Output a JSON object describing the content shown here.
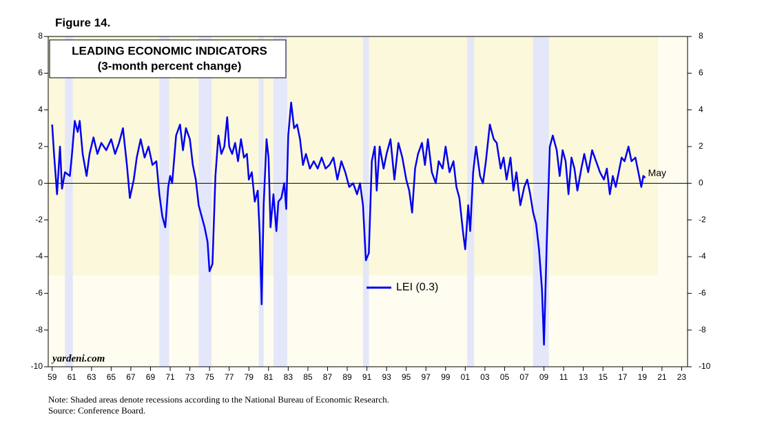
{
  "chart_data": {
    "type": "line",
    "figure_label": "Figure 14.",
    "title": "LEADING ECONOMIC INDICATORS",
    "subtitle": "(3-month percent change)",
    "x": [
      1959.0,
      1959.2,
      1959.5,
      1959.8,
      1960.0,
      1960.3,
      1960.8,
      1961.0,
      1961.3,
      1961.6,
      1961.8,
      1962.1,
      1962.5,
      1962.8,
      1963.2,
      1963.6,
      1964.0,
      1964.5,
      1965.0,
      1965.4,
      1965.8,
      1966.2,
      1966.6,
      1966.9,
      1967.3,
      1967.6,
      1968.0,
      1968.4,
      1968.8,
      1969.2,
      1969.6,
      1969.9,
      1970.2,
      1970.5,
      1970.8,
      1971.0,
      1971.2,
      1971.6,
      1972.0,
      1972.3,
      1972.6,
      1973.0,
      1973.3,
      1973.6,
      1973.9,
      1974.2,
      1974.5,
      1974.8,
      1975.0,
      1975.3,
      1975.6,
      1975.9,
      1976.2,
      1976.5,
      1976.8,
      1977.0,
      1977.3,
      1977.6,
      1977.9,
      1978.2,
      1978.5,
      1978.8,
      1979.0,
      1979.3,
      1979.6,
      1979.9,
      1980.1,
      1980.3,
      1980.5,
      1980.8,
      1981.0,
      1981.2,
      1981.5,
      1981.8,
      1982.0,
      1982.3,
      1982.6,
      1982.8,
      1983.0,
      1983.3,
      1983.6,
      1983.9,
      1984.2,
      1984.5,
      1984.8,
      1985.2,
      1985.6,
      1986.0,
      1986.4,
      1986.8,
      1987.2,
      1987.6,
      1988.0,
      1988.4,
      1988.8,
      1989.2,
      1989.6,
      1990.0,
      1990.3,
      1990.6,
      1990.9,
      1991.2,
      1991.5,
      1991.8,
      1992.0,
      1992.3,
      1992.7,
      1993.0,
      1993.4,
      1993.8,
      1994.2,
      1994.6,
      1995.0,
      1995.3,
      1995.6,
      1995.9,
      1996.2,
      1996.6,
      1996.9,
      1997.2,
      1997.6,
      1998.0,
      1998.3,
      1998.7,
      1999.0,
      1999.4,
      1999.8,
      2000.1,
      2000.4,
      2000.8,
      2001.0,
      2001.3,
      2001.5,
      2001.8,
      2002.1,
      2002.5,
      2002.8,
      2003.1,
      2003.5,
      2003.9,
      2004.2,
      2004.6,
      2004.9,
      2005.2,
      2005.6,
      2005.9,
      2006.2,
      2006.6,
      2007.0,
      2007.3,
      2007.6,
      2007.9,
      2008.2,
      2008.5,
      2008.8,
      2009.0,
      2009.3,
      2009.6,
      2009.9,
      2010.3,
      2010.6,
      2010.9,
      2011.2,
      2011.5,
      2011.8,
      2012.1,
      2012.4,
      2012.8,
      2013.1,
      2013.5,
      2013.9,
      2014.3,
      2014.7,
      2015.1,
      2015.4,
      2015.7,
      2016.0,
      2016.3,
      2016.6,
      2016.9,
      2017.2,
      2017.6,
      2017.9,
      2018.3,
      2018.6,
      2018.9,
      2019.1,
      2019.3
    ],
    "series": [
      {
        "name": "LEI (0.3)",
        "color": "#0000ee",
        "values": [
          3.2,
          1.5,
          -0.6,
          2.0,
          -0.3,
          0.6,
          0.4,
          1.5,
          3.4,
          2.8,
          3.4,
          1.6,
          0.4,
          1.6,
          2.5,
          1.6,
          2.2,
          1.8,
          2.4,
          1.6,
          2.2,
          3.0,
          1.0,
          -0.8,
          0.2,
          1.4,
          2.4,
          1.4,
          2.0,
          1.0,
          1.2,
          -0.6,
          -1.8,
          -2.4,
          -0.2,
          0.4,
          0.0,
          2.6,
          3.2,
          1.8,
          3.0,
          2.4,
          1.0,
          0.2,
          -1.2,
          -1.8,
          -2.4,
          -3.2,
          -4.8,
          -4.4,
          0.4,
          2.6,
          1.6,
          2.0,
          3.6,
          2.0,
          1.6,
          2.2,
          1.2,
          2.4,
          1.4,
          1.6,
          0.2,
          0.6,
          -1.0,
          -0.4,
          -2.8,
          -6.6,
          -1.2,
          2.4,
          1.4,
          -2.4,
          -0.6,
          -2.6,
          -1.0,
          -0.8,
          0.0,
          -1.4,
          2.6,
          4.4,
          3.0,
          3.2,
          2.4,
          1.0,
          1.6,
          0.8,
          1.2,
          0.8,
          1.4,
          0.8,
          1.0,
          1.4,
          0.2,
          1.2,
          0.6,
          -0.2,
          0.0,
          -0.6,
          0.0,
          -1.2,
          -4.2,
          -3.8,
          1.2,
          2.0,
          -0.4,
          2.0,
          0.8,
          1.6,
          2.4,
          0.2,
          2.2,
          1.4,
          0.2,
          -0.4,
          -1.6,
          0.8,
          1.6,
          2.2,
          1.0,
          2.4,
          0.6,
          0.0,
          1.2,
          0.8,
          2.0,
          0.6,
          1.2,
          -0.2,
          -0.8,
          -2.8,
          -3.6,
          -1.2,
          -2.6,
          0.6,
          2.0,
          0.4,
          0.0,
          1.2,
          3.2,
          2.4,
          2.2,
          0.8,
          1.4,
          0.2,
          1.4,
          -0.4,
          0.6,
          -1.2,
          -0.2,
          0.2,
          -0.6,
          -1.6,
          -2.2,
          -3.6,
          -5.8,
          -8.8,
          -3.0,
          2.0,
          2.6,
          1.8,
          0.4,
          1.8,
          1.2,
          -0.6,
          1.4,
          0.8,
          -0.4,
          0.8,
          1.6,
          0.6,
          1.8,
          1.2,
          0.6,
          0.2,
          0.8,
          -0.6,
          0.4,
          -0.2,
          0.6,
          1.4,
          1.2,
          2.0,
          1.2,
          1.4,
          0.6,
          -0.2,
          0.4,
          0.3
        ]
      }
    ],
    "annotation": "May",
    "watermark": "yardeni.com",
    "recessions": [
      [
        1960.3,
        1961.1
      ],
      [
        1969.9,
        1970.9
      ],
      [
        1973.9,
        1975.2
      ],
      [
        1980.0,
        1980.5
      ],
      [
        1981.5,
        1982.9
      ],
      [
        1990.6,
        1991.2
      ],
      [
        2001.2,
        2001.9
      ],
      [
        2007.9,
        2009.5
      ]
    ],
    "xlim": [
      1958.6,
      2023.6
    ],
    "ylim": [
      -10,
      8
    ],
    "yticks": [
      -10,
      -8,
      -6,
      -4,
      -2,
      0,
      2,
      4,
      6,
      8
    ],
    "xticks": [
      {
        "value": 1959,
        "label": "59"
      },
      {
        "value": 1961,
        "label": "61"
      },
      {
        "value": 1963,
        "label": "63"
      },
      {
        "value": 1965,
        "label": "65"
      },
      {
        "value": 1967,
        "label": "67"
      },
      {
        "value": 1969,
        "label": "69"
      },
      {
        "value": 1971,
        "label": "71"
      },
      {
        "value": 1973,
        "label": "73"
      },
      {
        "value": 1975,
        "label": "75"
      },
      {
        "value": 1977,
        "label": "77"
      },
      {
        "value": 1979,
        "label": "79"
      },
      {
        "value": 1981,
        "label": "81"
      },
      {
        "value": 1983,
        "label": "83"
      },
      {
        "value": 1985,
        "label": "85"
      },
      {
        "value": 1987,
        "label": "87"
      },
      {
        "value": 1989,
        "label": "89"
      },
      {
        "value": 1991,
        "label": "91"
      },
      {
        "value": 1993,
        "label": "93"
      },
      {
        "value": 1995,
        "label": "95"
      },
      {
        "value": 1997,
        "label": "97"
      },
      {
        "value": 1999,
        "label": "99"
      },
      {
        "value": 2001,
        "label": "01"
      },
      {
        "value": 2003,
        "label": "03"
      },
      {
        "value": 2005,
        "label": "05"
      },
      {
        "value": 2007,
        "label": "07"
      },
      {
        "value": 2009,
        "label": "09"
      },
      {
        "value": 2011,
        "label": "11"
      },
      {
        "value": 2013,
        "label": "13"
      },
      {
        "value": 2015,
        "label": "15"
      },
      {
        "value": 2017,
        "label": "17"
      },
      {
        "value": 2019,
        "label": "19"
      },
      {
        "value": 2021,
        "label": "21"
      },
      {
        "value": 2023,
        "label": "23"
      }
    ],
    "notes": [
      "Note: Shaded areas denote recessions according to the National Bureau of Economic Research.",
      "Source: Conference Board."
    ]
  }
}
